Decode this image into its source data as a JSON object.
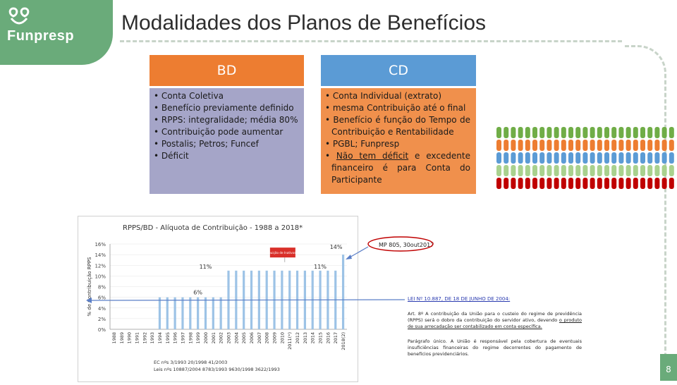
{
  "brand": {
    "name": "Funpresp",
    "logo_icon": "funpresp-logo-icon",
    "color": "#6aab7a"
  },
  "title": "Modalidades dos Planos de Benefícios",
  "bd": {
    "heading": "BD",
    "items": [
      "• Conta Coletiva",
      "• Benefício previamente definido",
      "• RPPS: integralidade; média 80%",
      "• Contribuição pode aumentar",
      "• Postalis; Petros; Funcef",
      "• Déficit"
    ],
    "head_color": "#ed7d31",
    "body_color": "#a5a5c8"
  },
  "cd": {
    "heading": "CD",
    "items": [
      "• Conta Individual (extrato)",
      "•  mesma Contribuição até o final",
      "• Benefício é função do Tempo de Contribuição e Rentabilidade",
      "• PGBL; Funpresp"
    ],
    "last_item": {
      "bullet": "• ",
      "underlined": "Não  tem  déficit",
      "rest": "  e  excedente financeiro  é  para  Conta  do Participante"
    },
    "head_color": "#5b9bd5",
    "body_color": "#f0904c"
  },
  "chart_data": {
    "type": "bar",
    "title": "RPPS/BD - Alíquota de Contribuição - 1988 a 2018*",
    "ylabel": "% de Contribuição RPPS",
    "xlabel": "",
    "ylim": [
      0,
      16
    ],
    "y_ticks": [
      "0%",
      "2%",
      "4%",
      "6%",
      "8%",
      "10%",
      "12%",
      "14%",
      "16%"
    ],
    "categories": [
      "1988",
      "1989",
      "1990",
      "1991",
      "1992",
      "1993",
      "1994",
      "1995",
      "1996",
      "1997",
      "1998",
      "1999",
      "2000",
      "2001",
      "2002",
      "2003",
      "2004",
      "2005",
      "2006",
      "2007",
      "2008",
      "2009",
      "2010",
      "2011(*)",
      "2012",
      "2013",
      "2014",
      "2015",
      "2016",
      "2017",
      "2018(2)"
    ],
    "values": [
      0,
      0,
      0,
      0,
      0,
      0,
      6,
      6,
      6,
      6,
      6,
      6,
      6,
      6,
      6,
      11,
      11,
      11,
      11,
      11,
      11,
      11,
      11,
      11,
      11,
      11,
      11,
      11,
      11,
      11,
      14
    ],
    "annotations": {
      "six": "6%",
      "eleven_left": "11%",
      "eleven_right": "11%",
      "fourteen": "14%",
      "red_note": "Contribuição de Inativos (11%)"
    },
    "bar_color": "#9dc3e6",
    "grid": true,
    "legend": "none"
  },
  "mp_label": "MP 805, 30out2017",
  "law": {
    "link": "LEI Nº 10.887, DE 18 DE JUNHO DE 2004:",
    "art_prefix": "Art. 8º A contribuição da União para o custeio do regime de previdência (RPPS) será o dobro da contribuição do servidor ativo, devendo ",
    "art_underlined": "o produto de sua arrecadação ser contabilizado em conta específica.",
    "paragraph": "Parágrafo único. A União é responsável pela cobertura de eventuais insuficiências financeiras do regime decorrentes do pagamento de benefícios previdenciários."
  },
  "footnote": {
    "ec": "EC nºs 3/1993  20/1998  41/2003",
    "laws": "Leis nºs 10887/2004  8783/1993  9630/1998  3622/1993"
  },
  "page_number": "8"
}
